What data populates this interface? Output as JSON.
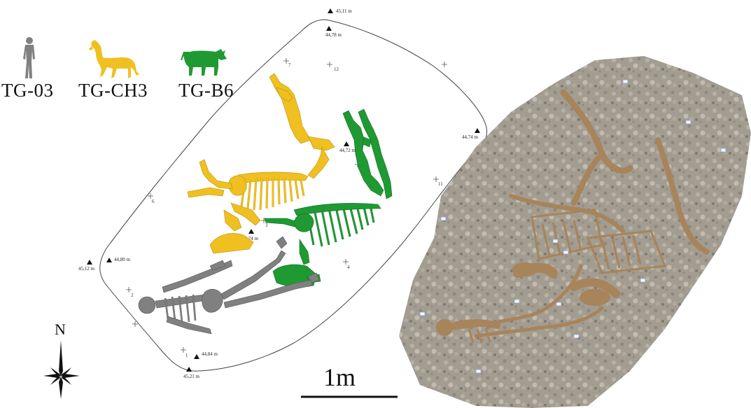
{
  "legend": {
    "items": [
      {
        "id": "TG-03",
        "label": "TG-03",
        "icon": "human-silhouette-icon",
        "color": "#808080"
      },
      {
        "id": "TG-CH3",
        "label": "TG-CH3",
        "icon": "horse-silhouette-icon",
        "color": "#F0C020"
      },
      {
        "id": "TG-B6",
        "label": "TG-B6",
        "icon": "bovine-silhouette-icon",
        "color": "#1F9A33"
      }
    ]
  },
  "north_arrow": {
    "label": "N",
    "icon": "compass-star-icon"
  },
  "scale_bar": {
    "label": "1m"
  },
  "elevations": [
    {
      "label": "45,11 m"
    },
    {
      "label": "44,78 m"
    },
    {
      "label": "44,74 m"
    },
    {
      "label": "44,72 m"
    },
    {
      "label": "44,74 m"
    },
    {
      "label": "44,80 m"
    },
    {
      "label": "45,12 m"
    },
    {
      "label": "44,84 m"
    },
    {
      "label": "45,21 m"
    }
  ],
  "grid_points": [
    {
      "label": "7"
    },
    {
      "label": "12"
    },
    {
      "label": "11"
    },
    {
      "label": "6"
    },
    {
      "label": "3"
    },
    {
      "label": "4"
    },
    {
      "label": "2"
    },
    {
      "label": "1"
    }
  ],
  "colors": {
    "human": "#808080",
    "horse": "#F0C020",
    "bovine": "#1F9A33",
    "outline": "#444444",
    "photo_ground": "#a39d92"
  }
}
